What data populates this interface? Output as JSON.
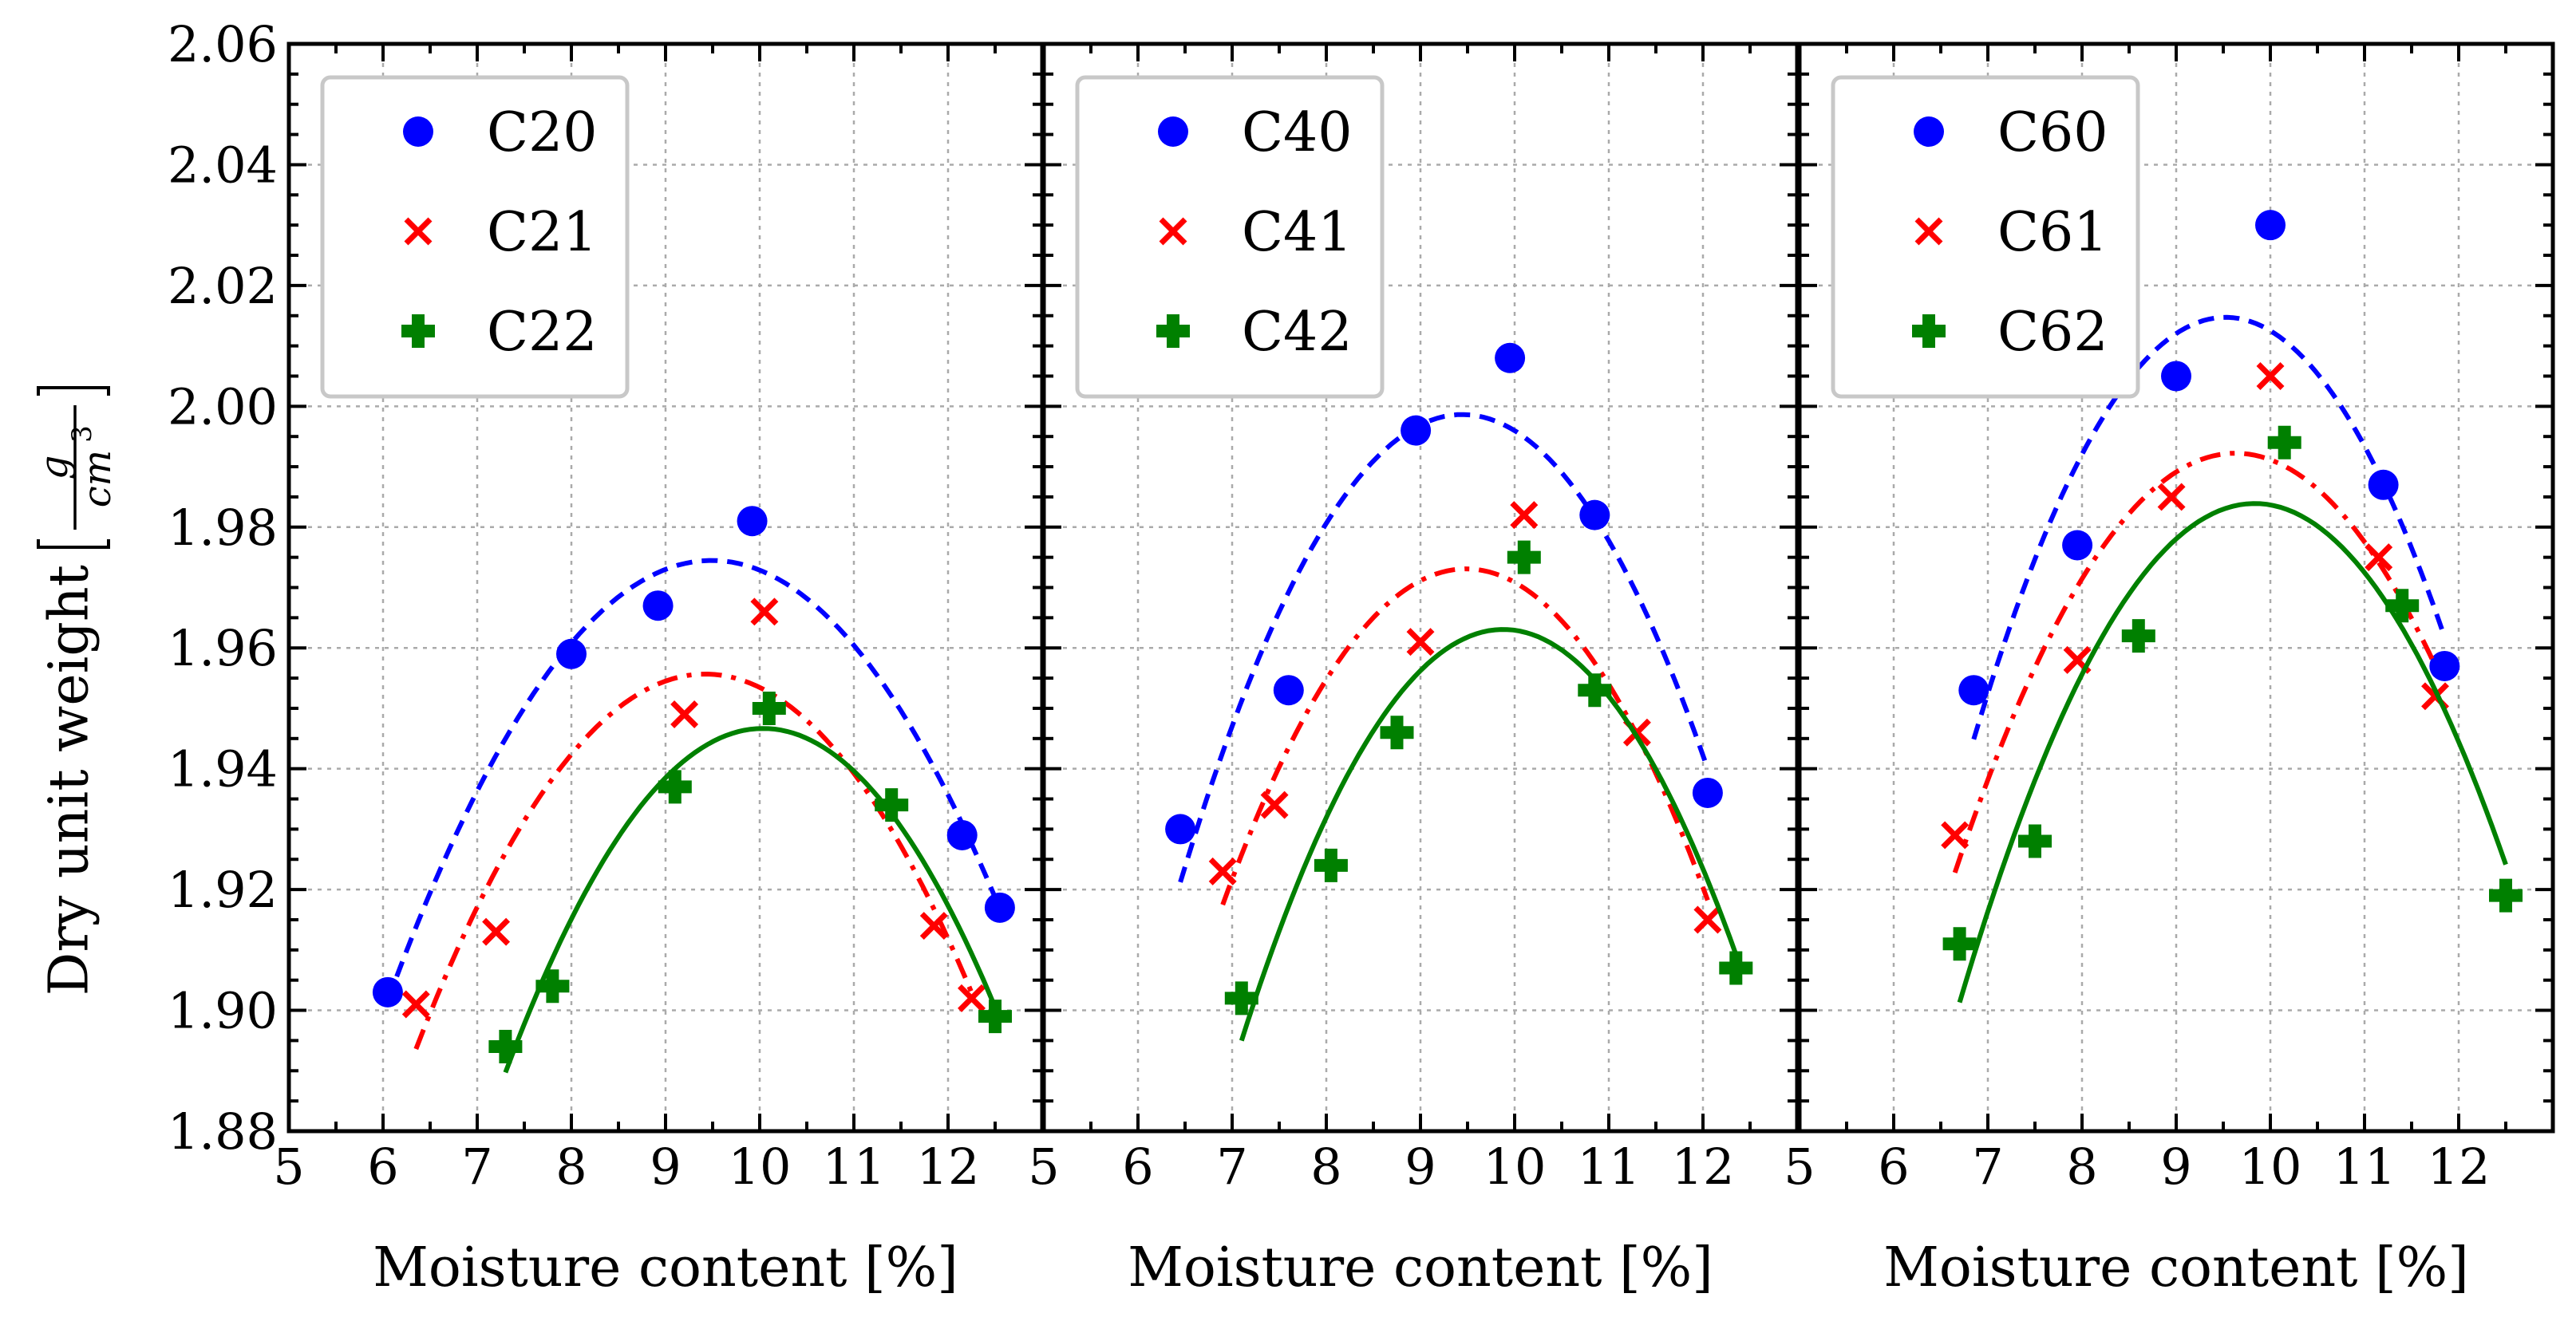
{
  "figure": {
    "ylabel_main": "Dry unit weight",
    "ylabel_unit_numerator": "g",
    "ylabel_unit_denominator_base": "cm",
    "ylabel_unit_denominator_exponent": "3"
  },
  "colors": {
    "series_1": "#0000ff",
    "series_2": "#ff0000",
    "series_3": "#008000"
  },
  "chart_data": [
    {
      "type": "scatter",
      "title": "",
      "xlabel": "Moisture content [%]",
      "ylabel": "Dry unit weight [g/cm3]",
      "xlim": [
        5,
        13
      ],
      "ylim": [
        1.88,
        2.06
      ],
      "xticks": [
        "5",
        "6",
        "7",
        "8",
        "9",
        "10",
        "11",
        "12"
      ],
      "yticks": [
        "1.88",
        "1.90",
        "1.92",
        "1.94",
        "1.96",
        "1.98",
        "2.00",
        "2.02",
        "2.04",
        "2.06"
      ],
      "grid": true,
      "legend_position": "top-left",
      "series": [
        {
          "name": "C20",
          "marker": "circle",
          "line": "dashed",
          "x": [
            6.05,
            8.0,
            8.92,
            9.92,
            12.15,
            12.55
          ],
          "y": [
            1.903,
            1.959,
            1.967,
            1.981,
            1.929,
            1.917
          ]
        },
        {
          "name": "C21",
          "marker": "x",
          "line": "dashdot",
          "x": [
            6.35,
            7.2,
            9.2,
            10.05,
            11.85,
            12.25
          ],
          "y": [
            1.901,
            1.913,
            1.949,
            1.966,
            1.914,
            1.902
          ]
        },
        {
          "name": "C22",
          "marker": "plus",
          "line": "solid",
          "x": [
            7.3,
            7.8,
            9.1,
            10.1,
            11.4,
            12.5
          ],
          "y": [
            1.894,
            1.904,
            1.937,
            1.95,
            1.934,
            1.899
          ]
        }
      ]
    },
    {
      "type": "scatter",
      "title": "",
      "xlabel": "Moisture content [%]",
      "ylabel": "",
      "xlim": [
        5,
        13
      ],
      "ylim": [
        1.88,
        2.06
      ],
      "xticks": [
        "5",
        "6",
        "7",
        "8",
        "9",
        "10",
        "11",
        "12"
      ],
      "yticks": [],
      "grid": true,
      "legend_position": "top-left",
      "series": [
        {
          "name": "C40",
          "marker": "circle",
          "line": "dashed",
          "x": [
            6.45,
            7.6,
            8.95,
            9.95,
            10.85,
            12.05
          ],
          "y": [
            1.93,
            1.953,
            1.996,
            2.008,
            1.982,
            1.936
          ]
        },
        {
          "name": "C41",
          "marker": "x",
          "line": "dashdot",
          "x": [
            6.9,
            7.45,
            9.0,
            10.1,
            11.3,
            12.05
          ],
          "y": [
            1.923,
            1.934,
            1.961,
            1.982,
            1.946,
            1.915
          ]
        },
        {
          "name": "C42",
          "marker": "plus",
          "line": "solid",
          "x": [
            7.1,
            8.05,
            8.75,
            10.1,
            10.85,
            12.35
          ],
          "y": [
            1.902,
            1.924,
            1.946,
            1.975,
            1.953,
            1.907
          ]
        }
      ]
    },
    {
      "type": "scatter",
      "title": "",
      "xlabel": "Moisture content [%]",
      "ylabel": "",
      "xlim": [
        5,
        13
      ],
      "ylim": [
        1.88,
        2.06
      ],
      "xticks": [
        "5",
        "6",
        "7",
        "8",
        "9",
        "10",
        "11",
        "12"
      ],
      "yticks": [],
      "grid": true,
      "legend_position": "top-left",
      "series": [
        {
          "name": "C60",
          "marker": "circle",
          "line": "dashed",
          "x": [
            6.85,
            7.95,
            9.0,
            10.0,
            11.2,
            11.85
          ],
          "y": [
            1.953,
            1.977,
            2.005,
            2.03,
            1.987,
            1.957
          ]
        },
        {
          "name": "C61",
          "marker": "x",
          "line": "dashdot",
          "x": [
            6.65,
            7.95,
            8.95,
            10.0,
            11.15,
            11.75
          ],
          "y": [
            1.929,
            1.958,
            1.985,
            2.005,
            1.975,
            1.952
          ]
        },
        {
          "name": "C62",
          "marker": "plus",
          "line": "solid",
          "x": [
            6.7,
            7.5,
            8.6,
            10.15,
            11.4,
            12.5
          ],
          "y": [
            1.911,
            1.928,
            1.962,
            1.994,
            1.967,
            1.919
          ]
        }
      ]
    }
  ]
}
